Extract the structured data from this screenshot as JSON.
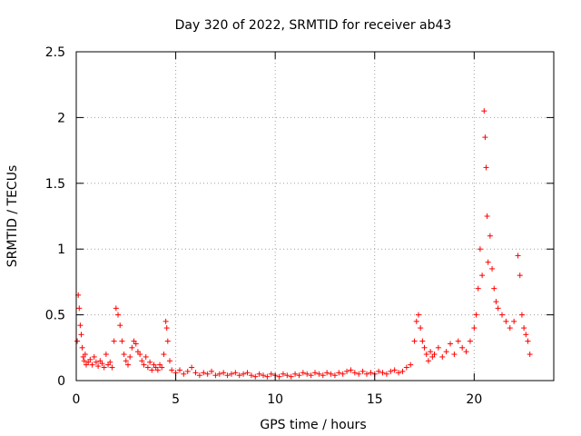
{
  "chart_data": {
    "type": "scatter",
    "title": "Day 320 of 2022, SRMTID for receiver ab43",
    "xlabel": "GPS time / hours",
    "ylabel": "SRMTID / TECUs",
    "xlim": [
      0,
      24
    ],
    "ylim": [
      0,
      2.5
    ],
    "xticks": [
      0,
      5,
      10,
      15,
      20
    ],
    "xtick_labels": [
      "0",
      "5",
      "10",
      "15",
      "20"
    ],
    "yticks": [
      0,
      0.5,
      1,
      1.5,
      2,
      2.5
    ],
    "ytick_labels": [
      "0",
      "0.5",
      "1",
      "1.5",
      "2",
      "2.5"
    ],
    "grid": true,
    "marker": "+",
    "series": [
      {
        "name": "SRMTID",
        "color": "#ff0000",
        "points": [
          [
            0.05,
            0.3
          ],
          [
            0.1,
            0.65
          ],
          [
            0.15,
            0.55
          ],
          [
            0.2,
            0.42
          ],
          [
            0.25,
            0.35
          ],
          [
            0.3,
            0.25
          ],
          [
            0.35,
            0.18
          ],
          [
            0.4,
            0.15
          ],
          [
            0.45,
            0.2
          ],
          [
            0.5,
            0.12
          ],
          [
            0.6,
            0.14
          ],
          [
            0.7,
            0.16
          ],
          [
            0.8,
            0.12
          ],
          [
            0.9,
            0.18
          ],
          [
            1.0,
            0.14
          ],
          [
            1.1,
            0.11
          ],
          [
            1.2,
            0.15
          ],
          [
            1.3,
            0.13
          ],
          [
            1.4,
            0.1
          ],
          [
            1.5,
            0.2
          ],
          [
            1.6,
            0.12
          ],
          [
            1.7,
            0.14
          ],
          [
            1.8,
            0.1
          ],
          [
            1.9,
            0.3
          ],
          [
            2.0,
            0.55
          ],
          [
            2.1,
            0.5
          ],
          [
            2.2,
            0.42
          ],
          [
            2.3,
            0.3
          ],
          [
            2.4,
            0.2
          ],
          [
            2.5,
            0.15
          ],
          [
            2.6,
            0.12
          ],
          [
            2.7,
            0.18
          ],
          [
            2.8,
            0.25
          ],
          [
            2.9,
            0.3
          ],
          [
            3.0,
            0.28
          ],
          [
            3.1,
            0.22
          ],
          [
            3.2,
            0.2
          ],
          [
            3.3,
            0.15
          ],
          [
            3.4,
            0.12
          ],
          [
            3.5,
            0.18
          ],
          [
            3.6,
            0.1
          ],
          [
            3.7,
            0.14
          ],
          [
            3.8,
            0.08
          ],
          [
            3.9,
            0.12
          ],
          [
            4.0,
            0.1
          ],
          [
            4.1,
            0.08
          ],
          [
            4.2,
            0.12
          ],
          [
            4.3,
            0.1
          ],
          [
            4.4,
            0.2
          ],
          [
            4.5,
            0.45
          ],
          [
            4.55,
            0.4
          ],
          [
            4.6,
            0.3
          ],
          [
            4.7,
            0.15
          ],
          [
            4.8,
            0.08
          ],
          [
            5.0,
            0.06
          ],
          [
            5.2,
            0.08
          ],
          [
            5.4,
            0.05
          ],
          [
            5.6,
            0.07
          ],
          [
            5.8,
            0.1
          ],
          [
            6.0,
            0.06
          ],
          [
            6.2,
            0.04
          ],
          [
            6.4,
            0.06
          ],
          [
            6.6,
            0.05
          ],
          [
            6.8,
            0.07
          ],
          [
            7.0,
            0.04
          ],
          [
            7.2,
            0.05
          ],
          [
            7.4,
            0.06
          ],
          [
            7.6,
            0.04
          ],
          [
            7.8,
            0.05
          ],
          [
            8.0,
            0.06
          ],
          [
            8.2,
            0.04
          ],
          [
            8.4,
            0.05
          ],
          [
            8.6,
            0.06
          ],
          [
            8.8,
            0.04
          ],
          [
            9.0,
            0.03
          ],
          [
            9.2,
            0.05
          ],
          [
            9.4,
            0.04
          ],
          [
            9.6,
            0.03
          ],
          [
            9.8,
            0.05
          ],
          [
            10.0,
            0.04
          ],
          [
            10.2,
            0.03
          ],
          [
            10.4,
            0.05
          ],
          [
            10.6,
            0.04
          ],
          [
            10.8,
            0.03
          ],
          [
            11.0,
            0.05
          ],
          [
            11.2,
            0.04
          ],
          [
            11.4,
            0.06
          ],
          [
            11.6,
            0.05
          ],
          [
            11.8,
            0.04
          ],
          [
            12.0,
            0.06
          ],
          [
            12.2,
            0.05
          ],
          [
            12.4,
            0.04
          ],
          [
            12.6,
            0.06
          ],
          [
            12.8,
            0.05
          ],
          [
            13.0,
            0.04
          ],
          [
            13.2,
            0.06
          ],
          [
            13.4,
            0.05
          ],
          [
            13.6,
            0.07
          ],
          [
            13.8,
            0.08
          ],
          [
            14.0,
            0.06
          ],
          [
            14.2,
            0.05
          ],
          [
            14.4,
            0.07
          ],
          [
            14.6,
            0.05
          ],
          [
            14.8,
            0.06
          ],
          [
            15.0,
            0.05
          ],
          [
            15.2,
            0.07
          ],
          [
            15.4,
            0.06
          ],
          [
            15.6,
            0.05
          ],
          [
            15.8,
            0.07
          ],
          [
            16.0,
            0.08
          ],
          [
            16.2,
            0.06
          ],
          [
            16.4,
            0.07
          ],
          [
            16.6,
            0.1
          ],
          [
            16.8,
            0.12
          ],
          [
            17.0,
            0.3
          ],
          [
            17.1,
            0.45
          ],
          [
            17.2,
            0.5
          ],
          [
            17.3,
            0.4
          ],
          [
            17.4,
            0.3
          ],
          [
            17.5,
            0.25
          ],
          [
            17.6,
            0.2
          ],
          [
            17.7,
            0.15
          ],
          [
            17.8,
            0.22
          ],
          [
            17.9,
            0.18
          ],
          [
            18.0,
            0.2
          ],
          [
            18.2,
            0.25
          ],
          [
            18.4,
            0.18
          ],
          [
            18.6,
            0.22
          ],
          [
            18.8,
            0.28
          ],
          [
            19.0,
            0.2
          ],
          [
            19.2,
            0.3
          ],
          [
            19.4,
            0.25
          ],
          [
            19.6,
            0.22
          ],
          [
            19.8,
            0.3
          ],
          [
            20.0,
            0.4
          ],
          [
            20.1,
            0.5
          ],
          [
            20.2,
            0.7
          ],
          [
            20.3,
            1.0
          ],
          [
            20.4,
            0.8
          ],
          [
            20.5,
            2.05
          ],
          [
            20.55,
            1.85
          ],
          [
            20.6,
            1.62
          ],
          [
            20.65,
            1.25
          ],
          [
            20.7,
            0.9
          ],
          [
            20.8,
            1.1
          ],
          [
            20.9,
            0.85
          ],
          [
            21.0,
            0.7
          ],
          [
            21.1,
            0.6
          ],
          [
            21.2,
            0.55
          ],
          [
            21.4,
            0.5
          ],
          [
            21.6,
            0.45
          ],
          [
            21.8,
            0.4
          ],
          [
            22.0,
            0.45
          ],
          [
            22.2,
            0.95
          ],
          [
            22.3,
            0.8
          ],
          [
            22.4,
            0.5
          ],
          [
            22.5,
            0.4
          ],
          [
            22.6,
            0.35
          ],
          [
            22.7,
            0.3
          ],
          [
            22.8,
            0.2
          ]
        ]
      }
    ]
  }
}
